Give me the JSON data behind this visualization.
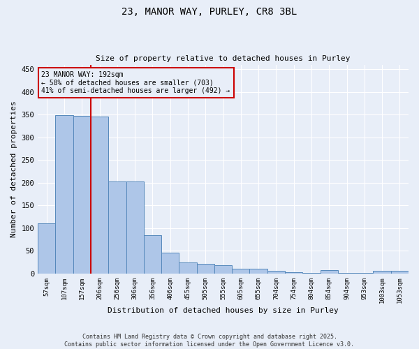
{
  "title_line1": "23, MANOR WAY, PURLEY, CR8 3BL",
  "title_line2": "Size of property relative to detached houses in Purley",
  "xlabel": "Distribution of detached houses by size in Purley",
  "ylabel": "Number of detached properties",
  "categories": [
    "57sqm",
    "107sqm",
    "157sqm",
    "206sqm",
    "256sqm",
    "306sqm",
    "356sqm",
    "406sqm",
    "455sqm",
    "505sqm",
    "555sqm",
    "605sqm",
    "655sqm",
    "704sqm",
    "754sqm",
    "804sqm",
    "854sqm",
    "904sqm",
    "953sqm",
    "1003sqm",
    "1053sqm"
  ],
  "values": [
    110,
    348,
    347,
    345,
    203,
    203,
    85,
    46,
    25,
    22,
    19,
    10,
    10,
    6,
    3,
    2,
    7,
    1,
    1,
    6,
    6
  ],
  "bar_color": "#aec6e8",
  "bar_edge_color": "#5588bb",
  "vline_position": 2.5,
  "vline_color": "#cc0000",
  "annotation_text": "23 MANOR WAY: 192sqm\n← 58% of detached houses are smaller (703)\n41% of semi-detached houses are larger (492) →",
  "annotation_box_color": "#cc0000",
  "ylim": [
    0,
    460
  ],
  "yticks": [
    0,
    50,
    100,
    150,
    200,
    250,
    300,
    350,
    400,
    450
  ],
  "background_color": "#e8eef8",
  "grid_color": "#ffffff",
  "footer_text": "Contains HM Land Registry data © Crown copyright and database right 2025.\nContains public sector information licensed under the Open Government Licence v3.0."
}
